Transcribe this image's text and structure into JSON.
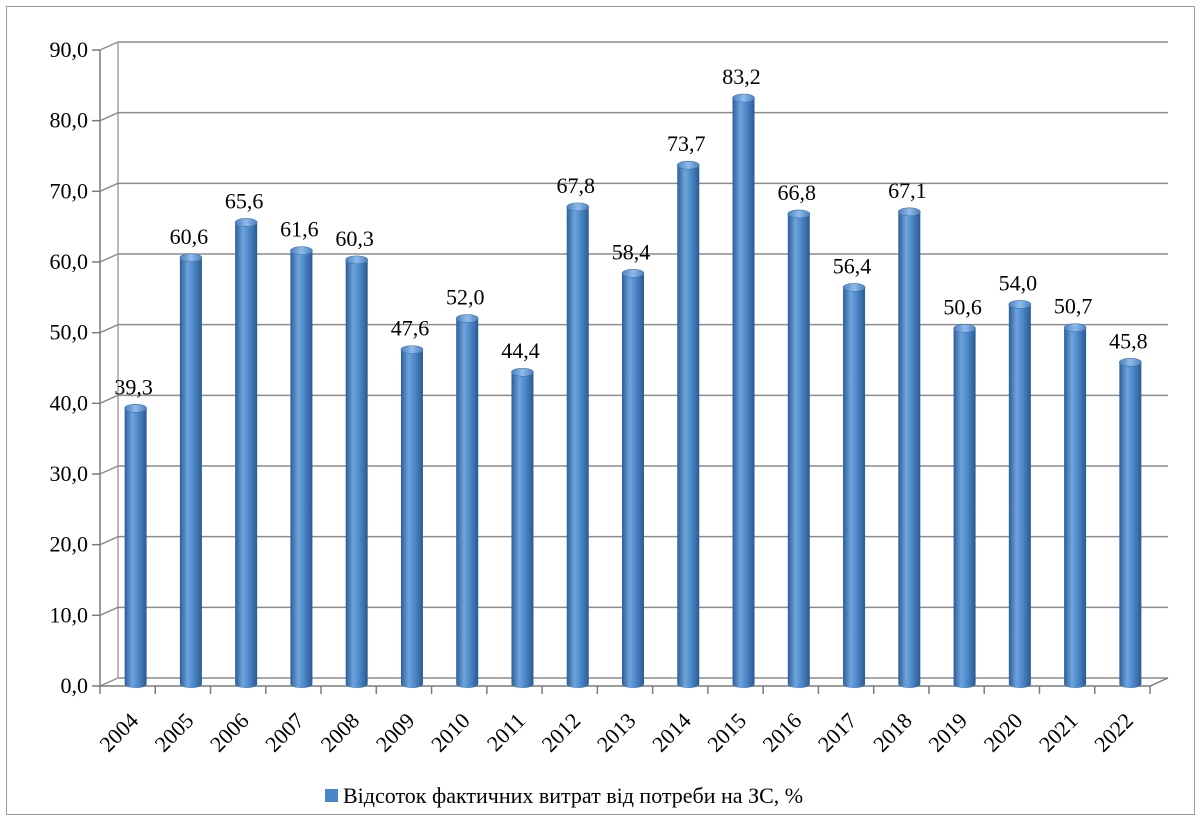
{
  "chart_data": {
    "type": "bar",
    "categories": [
      "2004",
      "2005",
      "2006",
      "2007",
      "2008",
      "2009",
      "2010",
      "2011",
      "2012",
      "2013",
      "2014",
      "2015",
      "2016",
      "2017",
      "2018",
      "2019",
      "2020",
      "2021",
      "2022"
    ],
    "series": [
      {
        "name": "Відсоток фактичних витрат від потреби на ЗС, %",
        "values": [
          39.3,
          60.6,
          65.6,
          61.6,
          60.3,
          47.6,
          52.0,
          44.4,
          67.8,
          58.4,
          73.7,
          83.2,
          66.8,
          56.4,
          67.1,
          50.6,
          54.0,
          50.7,
          45.8
        ],
        "value_labels": [
          "39,3",
          "60,6",
          "65,6",
          "61,6",
          "60,3",
          "47,6",
          "52,0",
          "44,4",
          "67,8",
          "58,4",
          "73,7",
          "83,2",
          "66,8",
          "56,4",
          "67,1",
          "50,6",
          "54,0",
          "50,7",
          "45,8"
        ]
      }
    ],
    "y_ticks": [
      "0,0",
      "10,0",
      "20,0",
      "30,0",
      "40,0",
      "50,0",
      "60,0",
      "70,0",
      "80,0",
      "90,0"
    ],
    "ylim": [
      0,
      90
    ],
    "y_step": 10,
    "grid": true,
    "legend_position": "bottom",
    "bar_color": "#4a86c8",
    "title": "",
    "xlabel": "",
    "ylabel": ""
  },
  "legend": {
    "label": "Відсоток фактичних витрат від потреби на ЗС, %",
    "color": "#4a86c8"
  }
}
